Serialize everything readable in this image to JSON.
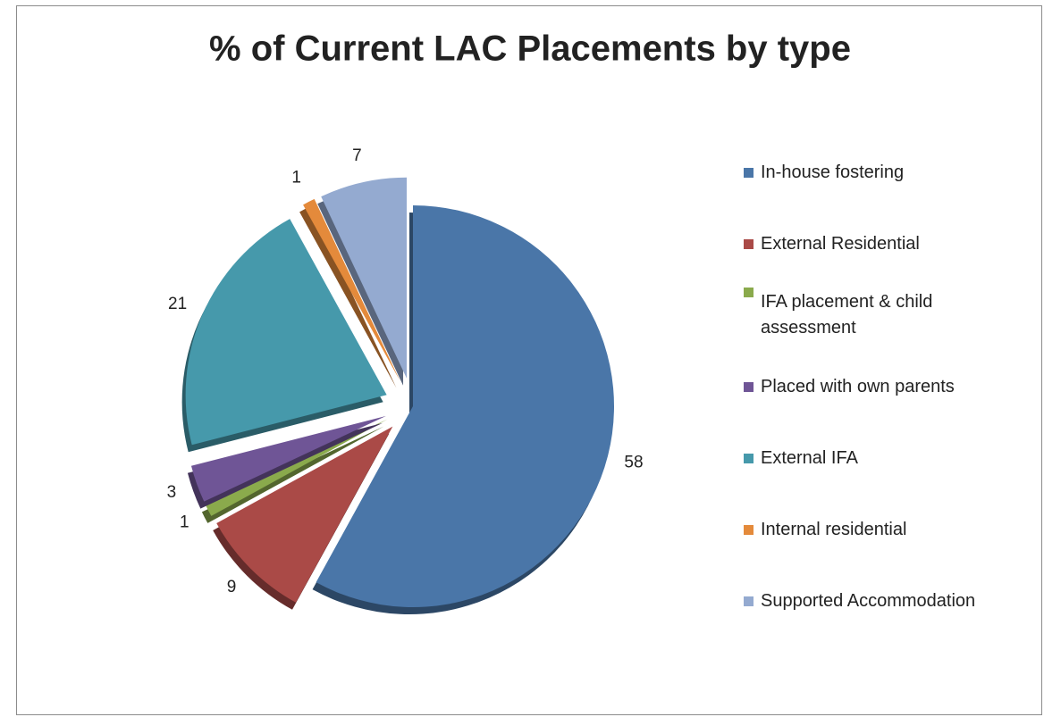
{
  "chart_data": {
    "type": "pie",
    "title": "% of Current LAC Placements by type",
    "categories": [
      "In-house fostering",
      "External Residential",
      "IFA placement & child assessment",
      "Placed with own parents",
      "External IFA",
      "Internal residential",
      "Supported Accommodation"
    ],
    "values": [
      58,
      9,
      1,
      3,
      21,
      1,
      7
    ],
    "colors": [
      "#4a76a8",
      "#aa4a47",
      "#8aaa4c",
      "#6f5596",
      "#4699ab",
      "#e48a3b",
      "#94aad0"
    ],
    "legend": "right"
  }
}
